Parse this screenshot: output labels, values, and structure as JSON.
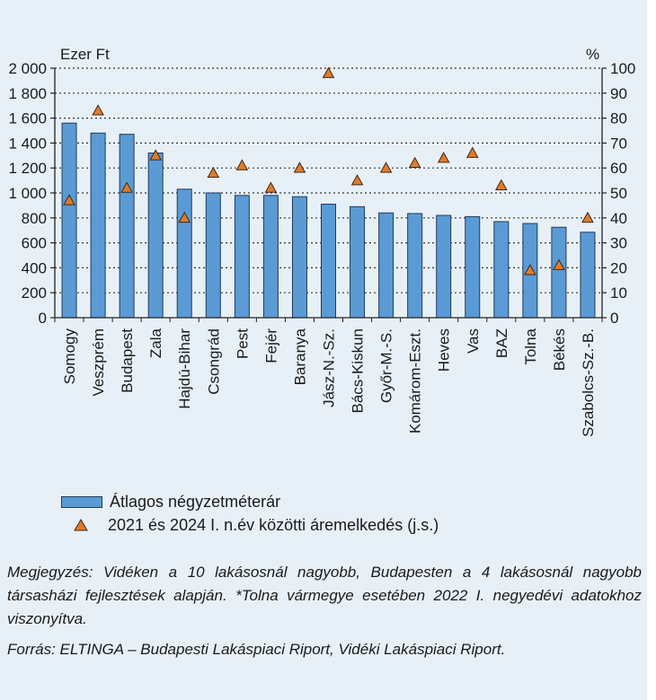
{
  "chart_data": {
    "type": "bar",
    "left_unit": "Ezer Ft",
    "right_unit": "%",
    "categories": [
      "Somogy",
      "Veszprém",
      "Budapest",
      "Zala",
      "Hajdú-Bihar",
      "Csongrád",
      "Pest",
      "Fejér",
      "Baranya",
      "Jász-N.-Sz.",
      "Bács-Kiskun",
      "Győr-M.-S.",
      "Komárom-Eszt.",
      "Heves",
      "Vas",
      "BAZ",
      "Tolna",
      "Békés",
      "Szabolcs-Sz.-B."
    ],
    "series": [
      {
        "name": "Átlagos négyzetméterár",
        "type": "bar",
        "axis": "left",
        "color": "#5b9bd5",
        "values": [
          1560,
          1480,
          1470,
          1320,
          1030,
          1000,
          980,
          980,
          970,
          910,
          890,
          840,
          835,
          820,
          810,
          770,
          755,
          725,
          685
        ]
      },
      {
        "name": "2021 és 2024 I. n.év közötti áremelkedés (j.s.)",
        "type": "marker",
        "axis": "right",
        "color": "#e07b2b",
        "values": [
          47,
          83,
          52,
          65,
          40,
          58,
          61,
          52,
          60,
          98,
          55,
          60,
          62,
          64,
          66,
          53,
          19,
          21,
          40
        ]
      }
    ],
    "ylim_left": [
      0,
      2000
    ],
    "ylim_right": [
      0,
      100
    ],
    "left_ticks": [
      "0",
      "200",
      "400",
      "600",
      "800",
      "1 000",
      "1 200",
      "1 400",
      "1 600",
      "1 800",
      "2 000"
    ],
    "right_ticks": [
      "0",
      "10",
      "20",
      "30",
      "40",
      "50",
      "60",
      "70",
      "80",
      "90",
      "100"
    ],
    "grid": "dotted horizontal"
  },
  "legend": {
    "bar_label": "Átlagos négyzetméterár",
    "marker_label": "2021 és 2024 I. n.év közötti áremelkedés (j.s.)"
  },
  "notes": {
    "megjegyzes": "Megjegyzés: Vidéken a 10 lakásosnál nagyobb, Budapesten a 4 lakásosnál nagyobb társasházi fejlesztések alapján. *Tolna vármegye esetében 2022 I. negyedévi adatokhoz viszonyítva.",
    "forras": "Forrás: ELTINGA – Budapesti Lakáspiaci Riport, Vidéki Lakáspiaci Riport."
  }
}
